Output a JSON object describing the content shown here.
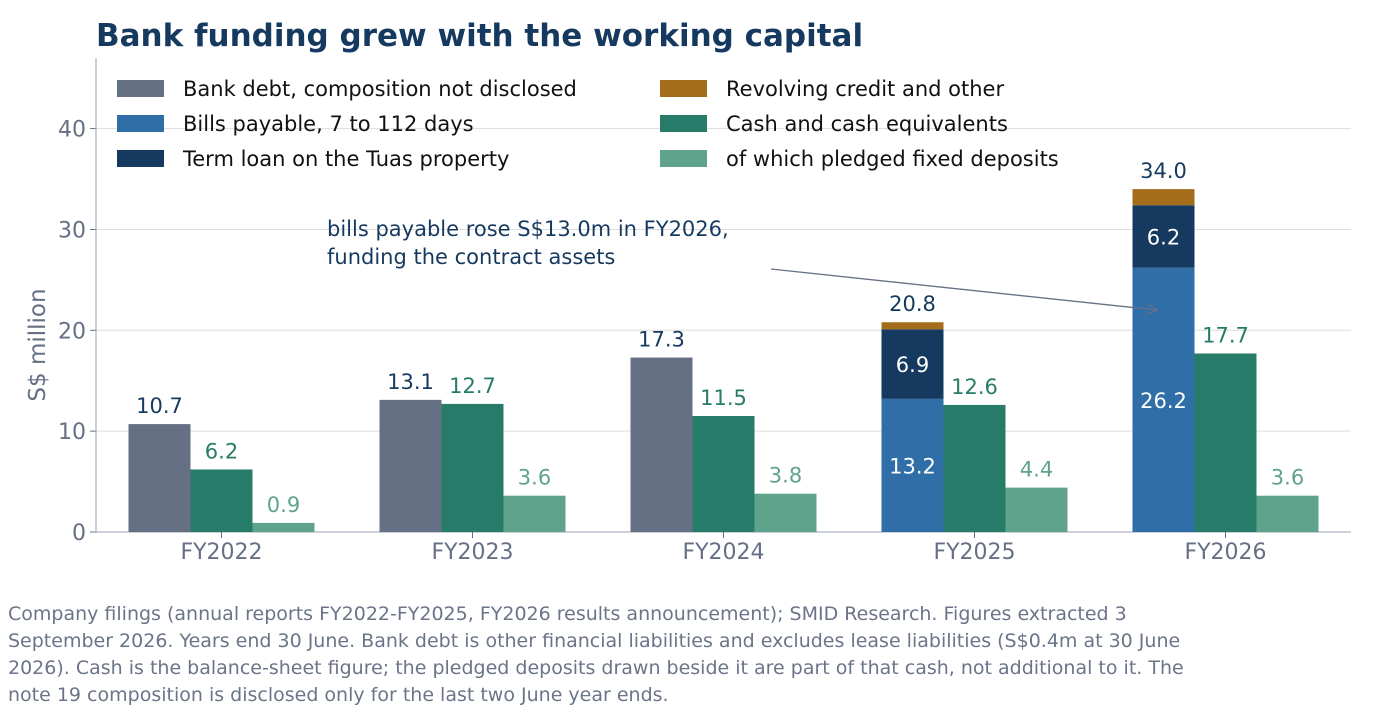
{
  "chart_data": {
    "type": "bar",
    "title": "Bank funding grew with the working capital",
    "ylabel": "S$ million",
    "xlabel": "",
    "ylim": [
      0,
      47
    ],
    "yticks": [
      0,
      10,
      20,
      30,
      40
    ],
    "grid": "horizontal",
    "legend_position": "top-left",
    "categories": [
      "FY2022",
      "FY2023",
      "FY2024",
      "FY2025",
      "FY2026"
    ],
    "series": [
      {
        "name": "Bank debt, composition not disclosed",
        "color": "#667085",
        "stack": "debt",
        "values": [
          10.7,
          13.1,
          17.3,
          null,
          null
        ],
        "labels": [
          "",
          "",
          "",
          "",
          ""
        ]
      },
      {
        "name": "Bills payable, 7 to 112 days",
        "color": "#2f6ea6",
        "stack": "debt",
        "values": [
          null,
          null,
          null,
          13.2,
          26.2
        ],
        "labels": [
          "",
          "",
          "",
          "13.2",
          "26.2"
        ]
      },
      {
        "name": "Term loan on the Tuas property",
        "color": "#163a5f",
        "stack": "debt",
        "values": [
          null,
          null,
          null,
          6.9,
          6.2
        ],
        "labels": [
          "",
          "",
          "",
          "6.9",
          "6.2"
        ]
      },
      {
        "name": "Revolving credit and other",
        "color": "#a36d1c",
        "stack": "debt",
        "values": [
          null,
          null,
          null,
          0.7,
          1.6
        ],
        "labels": [
          "",
          "",
          "",
          "",
          ""
        ]
      },
      {
        "name": "Cash and cash equivalents",
        "color": "#277c69",
        "stack": "cash",
        "values": [
          6.2,
          12.7,
          11.5,
          12.6,
          17.7
        ],
        "labels": [
          "6.2",
          "12.7",
          "11.5",
          "12.6",
          "17.7"
        ]
      },
      {
        "name": "of which pledged fixed deposits",
        "color": "#5fa38d",
        "stack": "pledged",
        "values": [
          0.9,
          3.6,
          3.8,
          4.4,
          3.6
        ],
        "labels": [
          "0.9",
          "3.6",
          "3.8",
          "4.4",
          "3.6"
        ]
      }
    ],
    "debt_totals": [
      "10.7",
      "13.1",
      "17.3",
      "20.8",
      "34.0"
    ],
    "annotation": {
      "lines": [
        "bills payable rose S$13.0m in FY2026,",
        "funding the contract assets"
      ],
      "target_category": "FY2026",
      "target_value": 22
    }
  },
  "footnote": "Company filings (annual reports FY2022-FY2025, FY2026 results announcement); SMID Research. Figures extracted 3 September 2026. Years end 30 June. Bank debt is other financial liabilities and excludes lease liabilities (S$0.4m at 30 June 2026). Cash is the balance-sheet figure; the pledged deposits drawn beside it are part of that cash, not additional to it. The note 19 composition is disclosed only for the last two June year ends.",
  "colors": {
    "title": "#163a5f",
    "axis_text": "#667085",
    "debt_label": "#163a5f",
    "inner_label": "#ffffff",
    "grid": "#dddddd",
    "annotation_arrow": "#667085"
  }
}
